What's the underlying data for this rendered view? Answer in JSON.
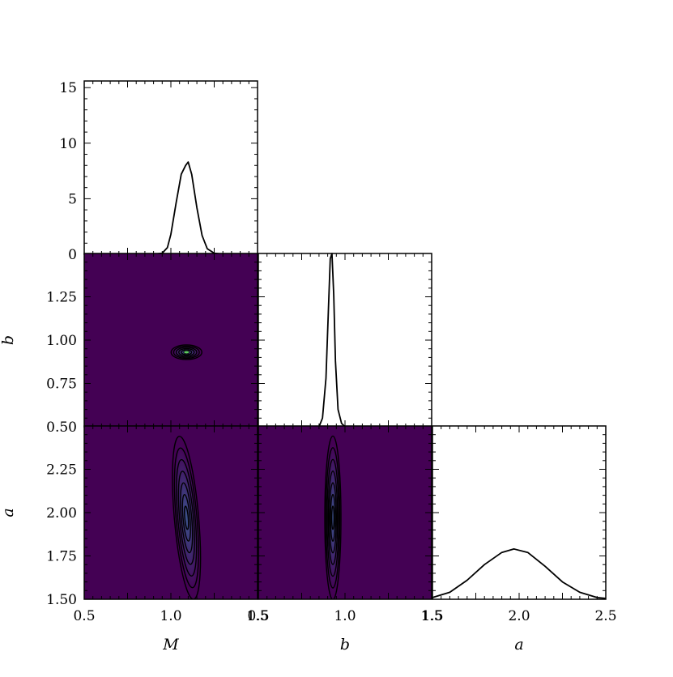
{
  "chart_data": {
    "type": "corner",
    "parameters": [
      "M",
      "b",
      "a"
    ],
    "colors": {
      "density_background": "#440154",
      "density_peak": "#3b528b",
      "density_peak_core": "#5ec962",
      "line": "#000000",
      "contour": "#000000"
    },
    "panels": [
      {
        "id": "hist-M",
        "type": "line",
        "x_param": "M",
        "xlim": [
          0.5,
          1.5
        ],
        "ylim": [
          0,
          15.6
        ],
        "yticks": [
          0,
          5,
          10,
          15
        ],
        "ytick_labels": [
          "0",
          "5",
          "10",
          "15"
        ],
        "x": [
          0.9,
          0.95,
          0.98,
          1.0,
          1.03,
          1.06,
          1.085,
          1.1,
          1.12,
          1.15,
          1.18,
          1.21,
          1.25,
          1.3
        ],
        "y": [
          0,
          0.1,
          0.6,
          1.8,
          4.6,
          7.2,
          8.0,
          8.3,
          7.2,
          4.2,
          1.7,
          0.5,
          0.1,
          0
        ]
      },
      {
        "id": "hist-b",
        "type": "line",
        "x_param": "b",
        "xlim": [
          0.5,
          1.5
        ],
        "ylim": [
          0,
          1
        ],
        "x": [
          0.85,
          0.87,
          0.89,
          0.905,
          0.915,
          0.925,
          0.935,
          0.945,
          0.96,
          0.98,
          1.0
        ],
        "y": [
          0,
          0.05,
          0.28,
          0.7,
          0.97,
          1.0,
          0.76,
          0.38,
          0.1,
          0.02,
          0
        ]
      },
      {
        "id": "hist-a",
        "type": "line",
        "x_param": "a",
        "xlim": [
          1.5,
          2.5
        ],
        "xticks": [
          1.5,
          2.0,
          2.5
        ],
        "xtick_labels": [
          "1.5",
          "2.0",
          "2.5"
        ],
        "ylim": [
          0,
          1
        ],
        "x": [
          1.5,
          1.6,
          1.7,
          1.8,
          1.9,
          1.97,
          2.05,
          2.15,
          2.25,
          2.35,
          2.45,
          2.5
        ],
        "y": [
          0.01,
          0.04,
          0.11,
          0.2,
          0.27,
          0.29,
          0.27,
          0.19,
          0.1,
          0.04,
          0.01,
          0.005
        ]
      },
      {
        "id": "density-M-b",
        "type": "heatmap",
        "x_param": "M",
        "y_param": "b",
        "xlim": [
          0.5,
          1.5
        ],
        "ylim": [
          0.5,
          1.5
        ],
        "yticks": [
          0.5,
          0.75,
          1.0,
          1.25
        ],
        "ytick_labels": [
          "0.50",
          "0.75",
          "1.00",
          "1.25"
        ],
        "center": [
          1.09,
          0.93
        ],
        "contour_levels": 6,
        "ylabel": "b"
      },
      {
        "id": "density-M-a",
        "type": "heatmap",
        "x_param": "M",
        "y_param": "a",
        "xlim": [
          0.5,
          1.5
        ],
        "ylim": [
          1.5,
          2.5
        ],
        "xticks": [
          0.5,
          1.0,
          1.5
        ],
        "xtick_labels": [
          "0.5",
          "1.0",
          "1.5"
        ],
        "yticks": [
          1.5,
          1.75,
          2.0,
          2.25
        ],
        "ytick_labels": [
          "1.50",
          "1.75",
          "2.00",
          "2.25"
        ],
        "center": [
          1.09,
          1.97
        ],
        "contour_levels": 7,
        "xlabel": "M",
        "ylabel": "a"
      },
      {
        "id": "density-b-a",
        "type": "heatmap",
        "x_param": "b",
        "y_param": "a",
        "xlim": [
          0.5,
          1.5
        ],
        "ylim": [
          1.5,
          2.5
        ],
        "xticks": [
          0.5,
          1.0,
          1.5
        ],
        "xtick_labels": [
          "0.5",
          "1.0",
          "1.5"
        ],
        "center": [
          0.93,
          1.97
        ],
        "contour_levels": 7,
        "xlabel": "b"
      }
    ],
    "xlabels": {
      "M": "M",
      "b": "b",
      "a": "a"
    },
    "ylabels": {
      "b": "b",
      "a": "a"
    },
    "grid": false,
    "legend": "none"
  }
}
